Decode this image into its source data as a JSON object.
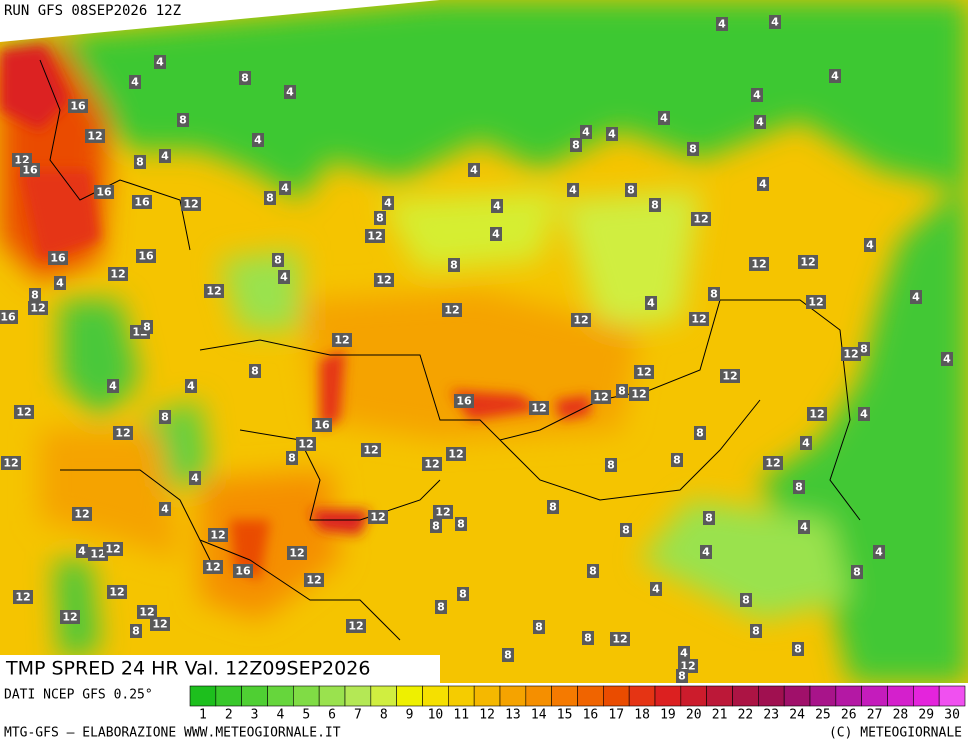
{
  "header": {
    "title": "RUN GFS 08SEP2026 12Z"
  },
  "map": {
    "caption": "TMP SPRED 24 HR Val. 12Z09SEP2026",
    "contour_labels": [
      4,
      8,
      4,
      4,
      16,
      8,
      12,
      4,
      4,
      8,
      12,
      16,
      4,
      8,
      16,
      16,
      12,
      4,
      8,
      12,
      4,
      4,
      4,
      4,
      8,
      8,
      12,
      8,
      4,
      8,
      4,
      4,
      4,
      4,
      4,
      4,
      4,
      4,
      12,
      12,
      4,
      16,
      16,
      12,
      8,
      4,
      12,
      8,
      12,
      4,
      8,
      12,
      16,
      12,
      12,
      4,
      8,
      12,
      12,
      4,
      12,
      8,
      12,
      8,
      12,
      12,
      8,
      12,
      12,
      12,
      16,
      12,
      8,
      4,
      4,
      4,
      8,
      12,
      12,
      4,
      16,
      12,
      12,
      8,
      12,
      12,
      12,
      8,
      4,
      12,
      8,
      8,
      12,
      8,
      4,
      4,
      8,
      12,
      8,
      8,
      12,
      12,
      12,
      8,
      8,
      4,
      4,
      12,
      12,
      12,
      4,
      4,
      12,
      16,
      8,
      12,
      8,
      4,
      12,
      12,
      8,
      8,
      8,
      12,
      12,
      12,
      8,
      12,
      8,
      8,
      8,
      12,
      4,
      8,
      8,
      12,
      8
    ]
  },
  "legend": {
    "source": "DATI NCEP GFS 0.25°",
    "ticks": [
      1,
      2,
      3,
      4,
      5,
      6,
      7,
      8,
      9,
      10,
      11,
      12,
      13,
      14,
      15,
      16,
      17,
      18,
      19,
      20,
      21,
      22,
      23,
      24,
      25,
      26,
      27,
      28,
      29,
      30
    ],
    "colors": [
      "#1dbf1d",
      "#38c82a",
      "#4fcf33",
      "#66d63c",
      "#80dc45",
      "#9ae24e",
      "#b4e855",
      "#d0ee40",
      "#eef000",
      "#f5e000",
      "#f5cc00",
      "#f5b800",
      "#f5a300",
      "#f58f00",
      "#f57a00",
      "#f06400",
      "#ea4c00",
      "#e53414",
      "#dc2020",
      "#cc1c2c",
      "#bc1838",
      "#ac1444",
      "#a01050",
      "#a0106a",
      "#a8148a",
      "#b418a4",
      "#c41cbc",
      "#d420cc",
      "#e424dc",
      "#f050f0"
    ]
  },
  "footer": {
    "left": "MTG-GFS — ELABORAZIONE WWW.METEOGIORNALE.IT",
    "right": "(C) METEOGIORNALE"
  }
}
